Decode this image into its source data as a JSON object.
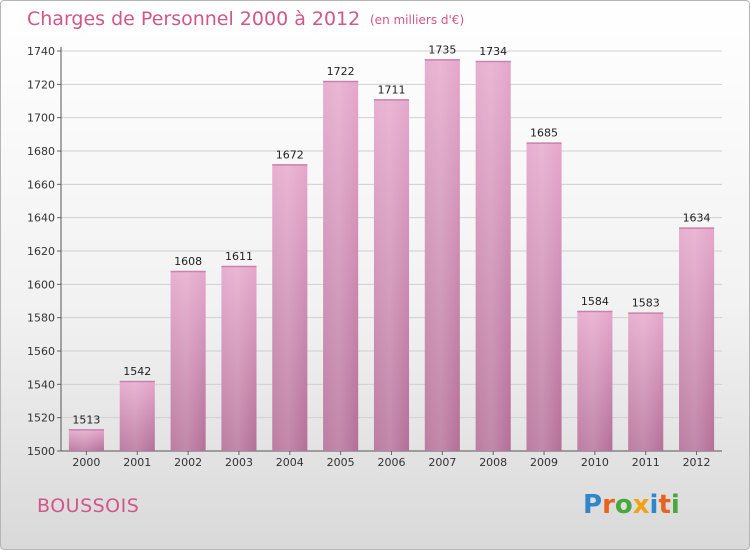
{
  "colors": {
    "accent": "#d2568a",
    "bar_top": "#e5a7cb",
    "bar_bottom": "#b46f97",
    "brand": [
      "#2f86c8",
      "#e8641e",
      "#48a83c",
      "#f0a312",
      "#2f86c8",
      "#e8641e",
      "#48a83c"
    ]
  },
  "footer": {
    "commune": "BOUSSOIS",
    "brand": "Proxiti"
  },
  "chart_data": {
    "type": "bar",
    "title": "Charges de Personnel 2000 à 2012",
    "subtitle": "(en milliers d'€)",
    "categories": [
      "2000",
      "2001",
      "2002",
      "2003",
      "2004",
      "2005",
      "2006",
      "2007",
      "2008",
      "2009",
      "2010",
      "2011",
      "2012"
    ],
    "values": [
      1513,
      1542,
      1608,
      1611,
      1672,
      1722,
      1711,
      1735,
      1734,
      1685,
      1584,
      1583,
      1634
    ],
    "ylim": [
      1500,
      1740
    ],
    "yticks": [
      1500,
      1520,
      1540,
      1560,
      1580,
      1600,
      1620,
      1640,
      1660,
      1680,
      1700,
      1720,
      1740
    ],
    "grid": true
  }
}
